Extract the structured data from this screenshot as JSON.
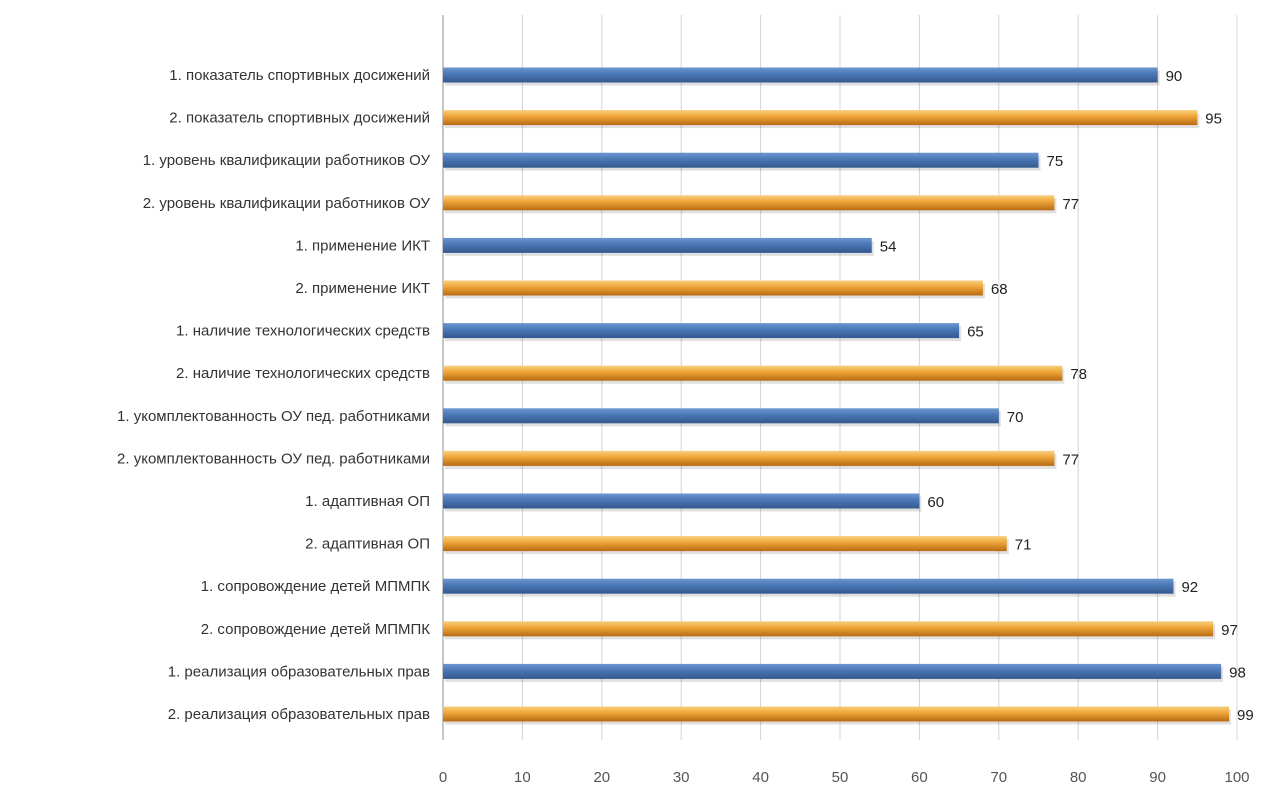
{
  "chart_data": {
    "type": "bar",
    "orientation": "horizontal",
    "title": "",
    "xlabel": "",
    "ylabel": "",
    "xlim": [
      0,
      100
    ],
    "ticks": [
      "0",
      "10",
      "20",
      "30",
      "40",
      "50",
      "60",
      "70",
      "80",
      "90",
      "100"
    ],
    "grid": true,
    "legend": "none",
    "colors": {
      "series_1": "#4a76b5",
      "series_2": "#e39a2e"
    },
    "bars": [
      {
        "label": "1. показатель спортивных досижений",
        "value": 90,
        "series": 1
      },
      {
        "label": "2. показатель спортивных досижений",
        "value": 95,
        "series": 2
      },
      {
        "label": "1. уровень квалификации работников ОУ",
        "value": 75,
        "series": 1
      },
      {
        "label": "2. уровень квалификации работников ОУ",
        "value": 77,
        "series": 2
      },
      {
        "label": "1. применение ИКТ",
        "value": 54,
        "series": 1
      },
      {
        "label": "2. применение ИКТ",
        "value": 68,
        "series": 2
      },
      {
        "label": "1. наличие технологических средств",
        "value": 65,
        "series": 1
      },
      {
        "label": "2. наличие технологических средств",
        "value": 78,
        "series": 2
      },
      {
        "label": "1. укомплектованность ОУ пед. работниками",
        "value": 70,
        "series": 1
      },
      {
        "label": "2. укомплектованность ОУ пед. работниками",
        "value": 77,
        "series": 2
      },
      {
        "label": "1. адаптивная ОП",
        "value": 60,
        "series": 1
      },
      {
        "label": "2. адаптивная ОП",
        "value": 71,
        "series": 2
      },
      {
        "label": "1. сопровождение детей МПМПК",
        "value": 92,
        "series": 1
      },
      {
        "label": "2. сопровождение детей МПМПК",
        "value": 97,
        "series": 2
      },
      {
        "label": "1. реализация образовательных прав",
        "value": 98,
        "series": 1
      },
      {
        "label": "2. реализация образовательных прав",
        "value": 99,
        "series": 2
      }
    ]
  }
}
